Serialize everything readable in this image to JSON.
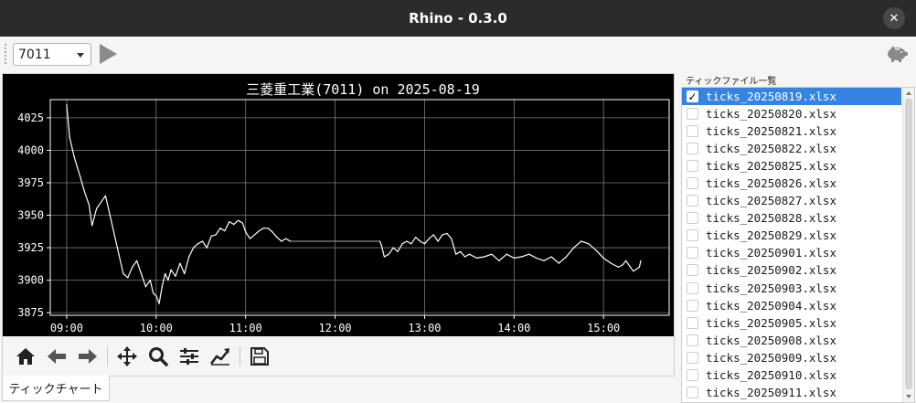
{
  "window": {
    "title": "Rhino - 0.3.0"
  },
  "toolbar": {
    "ticker_value": "7011"
  },
  "chart_tab": {
    "label": "ティックチャート"
  },
  "sidebar": {
    "title": "ティックファイル一覧",
    "files": [
      {
        "name": "ticks_20250819.xlsx",
        "checked": true
      },
      {
        "name": "ticks_20250820.xlsx",
        "checked": false
      },
      {
        "name": "ticks_20250821.xlsx",
        "checked": false
      },
      {
        "name": "ticks_20250822.xlsx",
        "checked": false
      },
      {
        "name": "ticks_20250825.xlsx",
        "checked": false
      },
      {
        "name": "ticks_20250826.xlsx",
        "checked": false
      },
      {
        "name": "ticks_20250827.xlsx",
        "checked": false
      },
      {
        "name": "ticks_20250828.xlsx",
        "checked": false
      },
      {
        "name": "ticks_20250829.xlsx",
        "checked": false
      },
      {
        "name": "ticks_20250901.xlsx",
        "checked": false
      },
      {
        "name": "ticks_20250902.xlsx",
        "checked": false
      },
      {
        "name": "ticks_20250903.xlsx",
        "checked": false
      },
      {
        "name": "ticks_20250904.xlsx",
        "checked": false
      },
      {
        "name": "ticks_20250905.xlsx",
        "checked": false
      },
      {
        "name": "ticks_20250908.xlsx",
        "checked": false
      },
      {
        "name": "ticks_20250909.xlsx",
        "checked": false
      },
      {
        "name": "ticks_20250910.xlsx",
        "checked": false
      },
      {
        "name": "ticks_20250911.xlsx",
        "checked": false
      }
    ]
  },
  "nav_icons": [
    "home-icon",
    "back-icon",
    "forward-icon",
    "pan-icon",
    "zoom-icon",
    "subplots-icon",
    "customize-icon",
    "save-icon"
  ],
  "colors": {
    "titlebar": "#2b2b2b",
    "selection": "#3584e4",
    "plot_bg": "#000000",
    "series": "#ffffff"
  },
  "chart_data": {
    "type": "line",
    "title": "三菱重工業(7011) on 2025-08-19",
    "xlabel": "",
    "ylabel": "",
    "x_ticks": [
      "09:00",
      "10:00",
      "11:00",
      "12:00",
      "13:00",
      "14:00",
      "15:00"
    ],
    "y_ticks": [
      3875,
      3900,
      3925,
      3950,
      3975,
      4000,
      4025
    ],
    "xlim": [
      "08:49",
      "15:44"
    ],
    "ylim": [
      3873,
      4039
    ],
    "grid": true,
    "series": [
      {
        "x": [
          "09:00",
          "09:02",
          "09:05",
          "09:09",
          "09:12",
          "09:15",
          "09:17",
          "09:20",
          "09:23",
          "09:26",
          "09:29",
          "09:32",
          "09:35",
          "09:38",
          "09:41",
          "09:44",
          "09:47",
          "09:50",
          "09:53",
          "09:56",
          "09:58",
          "10:00",
          "10:02",
          "10:04",
          "10:06",
          "10:08",
          "10:10",
          "10:13",
          "10:16",
          "10:19",
          "10:22",
          "10:25",
          "10:28",
          "10:31",
          "10:34",
          "10:37",
          "10:40",
          "10:43",
          "10:46",
          "10:49",
          "10:52",
          "10:55",
          "10:58",
          "11:00",
          "11:03",
          "11:06",
          "11:09",
          "11:12",
          "11:15",
          "11:18",
          "11:21",
          "11:24",
          "11:27",
          "11:30",
          "12:30",
          "12:31",
          "12:33",
          "12:36",
          "12:39",
          "12:42",
          "12:45",
          "12:48",
          "12:51",
          "12:54",
          "12:57",
          "13:00",
          "13:03",
          "13:06",
          "13:09",
          "13:12",
          "13:15",
          "13:18",
          "13:21",
          "13:24",
          "13:27",
          "13:30",
          "13:35",
          "13:40",
          "13:45",
          "13:50",
          "13:55",
          "14:00",
          "14:05",
          "14:10",
          "14:15",
          "14:20",
          "14:25",
          "14:30",
          "14:35",
          "14:40",
          "14:45",
          "14:50",
          "14:55",
          "15:00",
          "15:05",
          "15:10",
          "15:13",
          "15:15",
          "15:18",
          "15:20",
          "15:24",
          "15:25"
        ],
        "y": [
          4035,
          4010,
          3995,
          3980,
          3968,
          3958,
          3942,
          3955,
          3960,
          3965,
          3950,
          3935,
          3920,
          3905,
          3902,
          3910,
          3915,
          3905,
          3895,
          3900,
          3890,
          3888,
          3882,
          3895,
          3905,
          3900,
          3908,
          3903,
          3913,
          3905,
          3918,
          3925,
          3928,
          3930,
          3925,
          3934,
          3935,
          3940,
          3938,
          3945,
          3943,
          3946,
          3944,
          3937,
          3932,
          3935,
          3938,
          3940,
          3940,
          3937,
          3933,
          3930,
          3932,
          3930,
          3930,
          3927,
          3918,
          3920,
          3925,
          3922,
          3928,
          3930,
          3928,
          3933,
          3930,
          3928,
          3932,
          3935,
          3930,
          3935,
          3936,
          3932,
          3920,
          3922,
          3918,
          3920,
          3917,
          3918,
          3920,
          3915,
          3920,
          3917,
          3918,
          3920,
          3917,
          3915,
          3918,
          3913,
          3918,
          3925,
          3930,
          3928,
          3923,
          3917,
          3913,
          3910,
          3912,
          3915,
          3910,
          3907,
          3910,
          3915
        ]
      }
    ]
  }
}
